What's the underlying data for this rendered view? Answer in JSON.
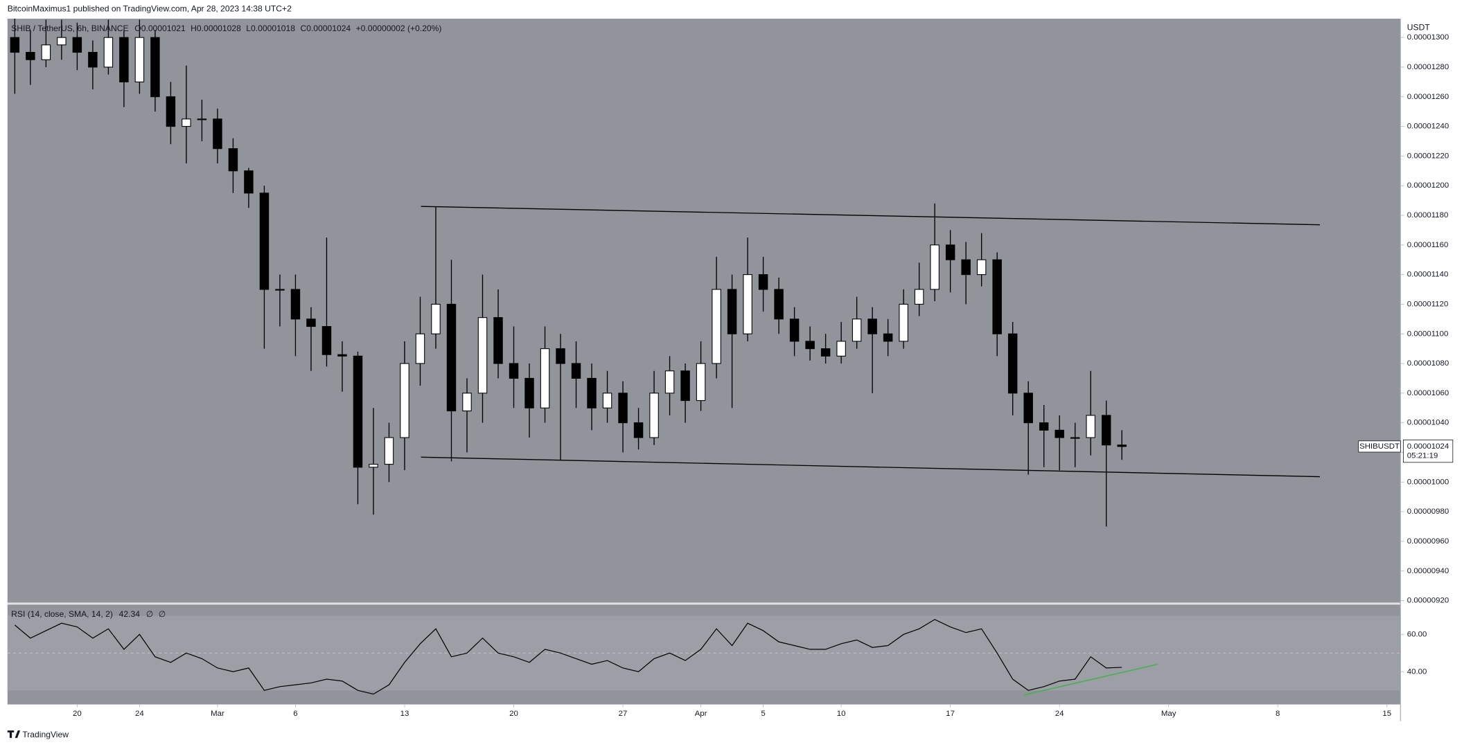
{
  "header": {
    "publisher": "BitcoinMaximus1 published on TradingView.com, Apr 28, 2023 14:38 UTC+2"
  },
  "footer": {
    "brand": "TradingView"
  },
  "chart_data": [
    {
      "type": "candlestick",
      "legend": {
        "symbol": "SHIB / TetherUS, 6h, BINANCE",
        "o": "O",
        "open": "0.00001021",
        "h": "H",
        "high": "0.00001028",
        "l": "L",
        "low": "0.00001018",
        "c": "C",
        "close": "0.00001024",
        "change": "+0.00000002 (+0.20%)"
      },
      "axis_unit": "USDT",
      "up_color": "#ffffff",
      "down_color": "#000000",
      "wick_color": "#000000",
      "background": "#92949c",
      "candles": [
        {
          "open": 1.3e-05,
          "high": 1.315e-05,
          "low": 1.262e-05,
          "close": 1.29e-05
        },
        {
          "open": 1.29e-05,
          "high": 1.305e-05,
          "low": 1.268e-05,
          "close": 1.285e-05
        },
        {
          "open": 1.285e-05,
          "high": 1.312e-05,
          "low": 1.28e-05,
          "close": 1.295e-05
        },
        {
          "open": 1.295e-05,
          "high": 1.312e-05,
          "low": 1.285e-05,
          "close": 1.3e-05
        },
        {
          "open": 1.3e-05,
          "high": 1.31e-05,
          "low": 1.278e-05,
          "close": 1.29e-05
        },
        {
          "open": 1.29e-05,
          "high": 1.298e-05,
          "low": 1.265e-05,
          "close": 1.28e-05
        },
        {
          "open": 1.28e-05,
          "high": 1.312e-05,
          "low": 1.275e-05,
          "close": 1.3e-05
        },
        {
          "open": 1.3e-05,
          "high": 1.305e-05,
          "low": 1.253e-05,
          "close": 1.27e-05
        },
        {
          "open": 1.27e-05,
          "high": 1.312e-05,
          "low": 1.262e-05,
          "close": 1.3e-05
        },
        {
          "open": 1.3e-05,
          "high": 1.305e-05,
          "low": 1.25e-05,
          "close": 1.26e-05
        },
        {
          "open": 1.26e-05,
          "high": 1.27e-05,
          "low": 1.228e-05,
          "close": 1.24e-05
        },
        {
          "open": 1.24e-05,
          "high": 1.281e-05,
          "low": 1.215e-05,
          "close": 1.245e-05
        },
        {
          "open": 1.245e-05,
          "high": 1.258e-05,
          "low": 1.23e-05,
          "close": 1.245e-05
        },
        {
          "open": 1.245e-05,
          "high": 1.252e-05,
          "low": 1.215e-05,
          "close": 1.225e-05
        },
        {
          "open": 1.225e-05,
          "high": 1.232e-05,
          "low": 1.195e-05,
          "close": 1.21e-05
        },
        {
          "open": 1.21e-05,
          "high": 1.212e-05,
          "low": 1.185e-05,
          "close": 1.195e-05
        },
        {
          "open": 1.195e-05,
          "high": 1.2e-05,
          "low": 1.09e-05,
          "close": 1.13e-05
        },
        {
          "open": 1.13e-05,
          "high": 1.14e-05,
          "low": 1.105e-05,
          "close": 1.13e-05
        },
        {
          "open": 1.13e-05,
          "high": 1.14e-05,
          "low": 1.085e-05,
          "close": 1.11e-05
        },
        {
          "open": 1.11e-05,
          "high": 1.118e-05,
          "low": 1.075e-05,
          "close": 1.105e-05
        },
        {
          "open": 1.105e-05,
          "high": 1.165e-05,
          "low": 1.078e-05,
          "close": 1.086e-05
        },
        {
          "open": 1.086e-05,
          "high": 1.095e-05,
          "low": 1.061e-05,
          "close": 1.085e-05
        },
        {
          "open": 1.085e-05,
          "high": 1.088e-05,
          "low": 9.85e-06,
          "close": 1.01e-05
        },
        {
          "open": 1.01e-05,
          "high": 1.05e-05,
          "low": 9.78e-06,
          "close": 1.012e-05
        },
        {
          "open": 1.012e-05,
          "high": 1.04e-05,
          "low": 1e-05,
          "close": 1.03e-05
        },
        {
          "open": 1.03e-05,
          "high": 1.095e-05,
          "low": 1.008e-05,
          "close": 1.08e-05
        },
        {
          "open": 1.08e-05,
          "high": 1.125e-05,
          "low": 1.065e-05,
          "close": 1.1e-05
        },
        {
          "open": 1.1e-05,
          "high": 1.186e-05,
          "low": 1.09e-05,
          "close": 1.12e-05
        },
        {
          "open": 1.12e-05,
          "high": 1.15e-05,
          "low": 1.014e-05,
          "close": 1.048e-05
        },
        {
          "open": 1.048e-05,
          "high": 1.07e-05,
          "low": 1.02e-05,
          "close": 1.06e-05
        },
        {
          "open": 1.06e-05,
          "high": 1.14e-05,
          "low": 1.04e-05,
          "close": 1.111e-05
        },
        {
          "open": 1.111e-05,
          "high": 1.13e-05,
          "low": 1.07e-05,
          "close": 1.08e-05
        },
        {
          "open": 1.08e-05,
          "high": 1.105e-05,
          "low": 1.05e-05,
          "close": 1.07e-05
        },
        {
          "open": 1.07e-05,
          "high": 1.08e-05,
          "low": 1.03e-05,
          "close": 1.05e-05
        },
        {
          "open": 1.05e-05,
          "high": 1.105e-05,
          "low": 1.04e-05,
          "close": 1.09e-05
        },
        {
          "open": 1.09e-05,
          "high": 1.1e-05,
          "low": 1.015e-05,
          "close": 1.08e-05
        },
        {
          "open": 1.08e-05,
          "high": 1.095e-05,
          "low": 1.05e-05,
          "close": 1.07e-05
        },
        {
          "open": 1.07e-05,
          "high": 1.08e-05,
          "low": 1.035e-05,
          "close": 1.05e-05
        },
        {
          "open": 1.05e-05,
          "high": 1.075e-05,
          "low": 1.04e-05,
          "close": 1.06e-05
        },
        {
          "open": 1.06e-05,
          "high": 1.068e-05,
          "low": 1.02e-05,
          "close": 1.04e-05
        },
        {
          "open": 1.04e-05,
          "high": 1.05e-05,
          "low": 1.022e-05,
          "close": 1.03e-05
        },
        {
          "open": 1.03e-05,
          "high": 1.075e-05,
          "low": 1.025e-05,
          "close": 1.06e-05
        },
        {
          "open": 1.06e-05,
          "high": 1.085e-05,
          "low": 1.045e-05,
          "close": 1.075e-05
        },
        {
          "open": 1.075e-05,
          "high": 1.08e-05,
          "low": 1.04e-05,
          "close": 1.055e-05
        },
        {
          "open": 1.055e-05,
          "high": 1.095e-05,
          "low": 1.048e-05,
          "close": 1.08e-05
        },
        {
          "open": 1.08e-05,
          "high": 1.152e-05,
          "low": 1.07e-05,
          "close": 1.13e-05
        },
        {
          "open": 1.13e-05,
          "high": 1.14e-05,
          "low": 1.05e-05,
          "close": 1.1e-05
        },
        {
          "open": 1.1e-05,
          "high": 1.165e-05,
          "low": 1.095e-05,
          "close": 1.14e-05
        },
        {
          "open": 1.14e-05,
          "high": 1.152e-05,
          "low": 1.115e-05,
          "close": 1.13e-05
        },
        {
          "open": 1.13e-05,
          "high": 1.138e-05,
          "low": 1.1e-05,
          "close": 1.11e-05
        },
        {
          "open": 1.11e-05,
          "high": 1.118e-05,
          "low": 1.085e-05,
          "close": 1.095e-05
        },
        {
          "open": 1.095e-05,
          "high": 1.105e-05,
          "low": 1.082e-05,
          "close": 1.09e-05
        },
        {
          "open": 1.09e-05,
          "high": 1.1e-05,
          "low": 1.08e-05,
          "close": 1.085e-05
        },
        {
          "open": 1.085e-05,
          "high": 1.108e-05,
          "low": 1.08e-05,
          "close": 1.095e-05
        },
        {
          "open": 1.095e-05,
          "high": 1.125e-05,
          "low": 1.09e-05,
          "close": 1.11e-05
        },
        {
          "open": 1.11e-05,
          "high": 1.118e-05,
          "low": 1.06e-05,
          "close": 1.1e-05
        },
        {
          "open": 1.1e-05,
          "high": 1.11e-05,
          "low": 1.085e-05,
          "close": 1.095e-05
        },
        {
          "open": 1.095e-05,
          "high": 1.13e-05,
          "low": 1.09e-05,
          "close": 1.12e-05
        },
        {
          "open": 1.12e-05,
          "high": 1.148e-05,
          "low": 1.112e-05,
          "close": 1.13e-05
        },
        {
          "open": 1.13e-05,
          "high": 1.188e-05,
          "low": 1.122e-05,
          "close": 1.16e-05
        },
        {
          "open": 1.16e-05,
          "high": 1.17e-05,
          "low": 1.128e-05,
          "close": 1.15e-05
        },
        {
          "open": 1.15e-05,
          "high": 1.162e-05,
          "low": 1.12e-05,
          "close": 1.14e-05
        },
        {
          "open": 1.14e-05,
          "high": 1.168e-05,
          "low": 1.132e-05,
          "close": 1.15e-05
        },
        {
          "open": 1.15e-05,
          "high": 1.155e-05,
          "low": 1.085e-05,
          "close": 1.1e-05
        },
        {
          "open": 1.1e-05,
          "high": 1.108e-05,
          "low": 1.045e-05,
          "close": 1.06e-05
        },
        {
          "open": 1.06e-05,
          "high": 1.068e-05,
          "low": 1.005e-05,
          "close": 1.04e-05
        },
        {
          "open": 1.04e-05,
          "high": 1.052e-05,
          "low": 1.01e-05,
          "close": 1.035e-05
        },
        {
          "open": 1.035e-05,
          "high": 1.045e-05,
          "low": 1.008e-05,
          "close": 1.03e-05
        },
        {
          "open": 1.03e-05,
          "high": 1.04e-05,
          "low": 1.01e-05,
          "close": 1.03e-05
        },
        {
          "open": 1.03e-05,
          "high": 1.075e-05,
          "low": 1.018e-05,
          "close": 1.045e-05
        },
        {
          "open": 1.045e-05,
          "high": 1.055e-05,
          "low": 9.7e-06,
          "close": 1.025e-05
        },
        {
          "open": 1.025e-05,
          "high": 1.035e-05,
          "low": 1.015e-05,
          "close": 1.024e-05
        }
      ],
      "xlim": [
        -0.47,
        88.87
      ],
      "xticks": [
        {
          "value": 4,
          "label": "20"
        },
        {
          "value": 8,
          "label": "24"
        },
        {
          "value": 13,
          "label": "Mar"
        },
        {
          "value": 18,
          "label": "6"
        },
        {
          "value": 25,
          "label": "13"
        },
        {
          "value": 32,
          "label": "20"
        },
        {
          "value": 39,
          "label": "27"
        },
        {
          "value": 44,
          "label": "Apr"
        },
        {
          "value": 48,
          "label": "5"
        },
        {
          "value": 53,
          "label": "10"
        },
        {
          "value": 60,
          "label": "17"
        },
        {
          "value": 67,
          "label": "24"
        },
        {
          "value": 74,
          "label": "May"
        },
        {
          "value": 81,
          "label": "8"
        },
        {
          "value": 88,
          "label": "15"
        }
      ],
      "ylim": [
        9.186e-06,
        1.3127e-05
      ],
      "yticks": [
        {
          "value": 1.3e-05,
          "label": "0.00001300"
        },
        {
          "value": 1.28e-05,
          "label": "0.00001280"
        },
        {
          "value": 1.26e-05,
          "label": "0.00001260"
        },
        {
          "value": 1.24e-05,
          "label": "0.00001240"
        },
        {
          "value": 1.22e-05,
          "label": "0.00001220"
        },
        {
          "value": 1.2e-05,
          "label": "0.00001200"
        },
        {
          "value": 1.18e-05,
          "label": "0.00001180"
        },
        {
          "value": 1.16e-05,
          "label": "0.00001160"
        },
        {
          "value": 1.14e-05,
          "label": "0.00001140"
        },
        {
          "value": 1.12e-05,
          "label": "0.00001120"
        },
        {
          "value": 1.1e-05,
          "label": "0.00001100"
        },
        {
          "value": 1.08e-05,
          "label": "0.00001080"
        },
        {
          "value": 1.06e-05,
          "label": "0.00001060"
        },
        {
          "value": 1.04e-05,
          "label": "0.00001040"
        },
        {
          "value": 1.02e-05,
          "label": "0.00001020"
        },
        {
          "value": 1e-05,
          "label": "0.00001000"
        },
        {
          "value": 9.8e-06,
          "label": "0.00000980"
        },
        {
          "value": 9.6e-06,
          "label": "0.00000960"
        },
        {
          "value": 9.4e-06,
          "label": "0.00000940"
        },
        {
          "value": 9.2e-06,
          "label": "0.00000920"
        }
      ],
      "trendlines": [
        {
          "x": [
            26.05,
            83.7
          ],
          "y": [
            1.186e-05,
            1.1736e-05
          ]
        },
        {
          "x": [
            26.05,
            83.7
          ],
          "y": [
            1.0168e-05,
            1.0036e-05
          ]
        }
      ],
      "last_price": {
        "symbol": "SHIBUSDT",
        "value": 1.024e-05,
        "value_label": "0.00001024",
        "countdown": "05:21:19"
      }
    },
    {
      "type": "line",
      "title": "RSI (14, close, SMA, 14, 2)",
      "value_label": "42.34",
      "na1": "∅",
      "na2": "∅",
      "color": "#000000",
      "background": "#92949c",
      "band_color": "#9d9fa6",
      "values": [
        65,
        58,
        62,
        66,
        64,
        58,
        63,
        52,
        60,
        48,
        45,
        50,
        47,
        42,
        40,
        42,
        30,
        32,
        33,
        34,
        36,
        35,
        30,
        28,
        33,
        45,
        55,
        63,
        48,
        50,
        58,
        50,
        48,
        45,
        52,
        50,
        47,
        44,
        46,
        42,
        40,
        47,
        50,
        46,
        52,
        63,
        54,
        66,
        62,
        56,
        54,
        52,
        52,
        55,
        57,
        53,
        54,
        60,
        63,
        68,
        64,
        61,
        63,
        50,
        36,
        30,
        32,
        35,
        36,
        48,
        42,
        42.34
      ],
      "ylim": [
        22.5,
        76
      ],
      "yticks": [
        {
          "value": 60,
          "label": "60.00"
        },
        {
          "value": 40,
          "label": "40.00"
        }
      ],
      "band": [
        30,
        70
      ],
      "midline": 50,
      "divergence": {
        "x": [
          64.7,
          73.3
        ],
        "y": [
          27.5,
          44
        ],
        "color": "#4caf50"
      }
    }
  ]
}
